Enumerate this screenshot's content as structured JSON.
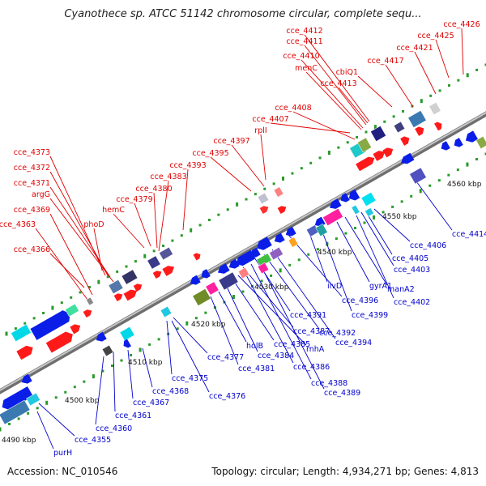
{
  "title": "Cyanothece sp. ATCC 51142 chromosome circular, complete sequ...",
  "footer": {
    "accession": "Accession: NC_010546",
    "topology": "Topology: circular; Length: 4,934,271 bp; Genes: 4,813"
  },
  "scale_labels": [
    "4490 kbp",
    "4500 kbp",
    "4510 kbp",
    "4520 kbp",
    "4530 kbp",
    "4540 kbp",
    "4550 kbp",
    "4560 kbp"
  ],
  "colors": {
    "forward_label": "#e00000",
    "reverse_label": "#0000cc",
    "backbone": "#888888",
    "tick": "#2a9a2a"
  },
  "forward_genes": [
    "cce_4373",
    "cce_4372",
    "cce_4371",
    "argG",
    "cce_4369",
    "cce_4363",
    "cce_4366",
    "phoD",
    "hemC",
    "cce_4379",
    "cce_4380",
    "cce_4383",
    "cce_4393",
    "cce_4395",
    "cce_4397",
    "rplI",
    "cce_4407",
    "cce_4408",
    "cce_4413",
    "menC",
    "cce_4410",
    "cce_4411",
    "cce_4412",
    "cbiQ1",
    "cce_4417",
    "cce_4421",
    "cce_4425",
    "cce_4426"
  ],
  "reverse_genes": [
    "purH",
    "cce_4355",
    "cce_4360",
    "cce_4361",
    "cce_4367",
    "cce_4368",
    "cce_4375",
    "cce_4376",
    "cce_4377",
    "cce_4381",
    "holB",
    "cce_4384",
    "cce_4385",
    "rnhA",
    "cce_4386",
    "cce_4387",
    "cce_4388",
    "cce_4389",
    "cce_4391",
    "cce_4392",
    "cce_4394",
    "cce_4396",
    "ilvD",
    "cce_4399",
    "gyrA1",
    "manA2",
    "cce_4402",
    "cce_4403",
    "cce_4405",
    "cce_4406",
    "cce_4414"
  ]
}
